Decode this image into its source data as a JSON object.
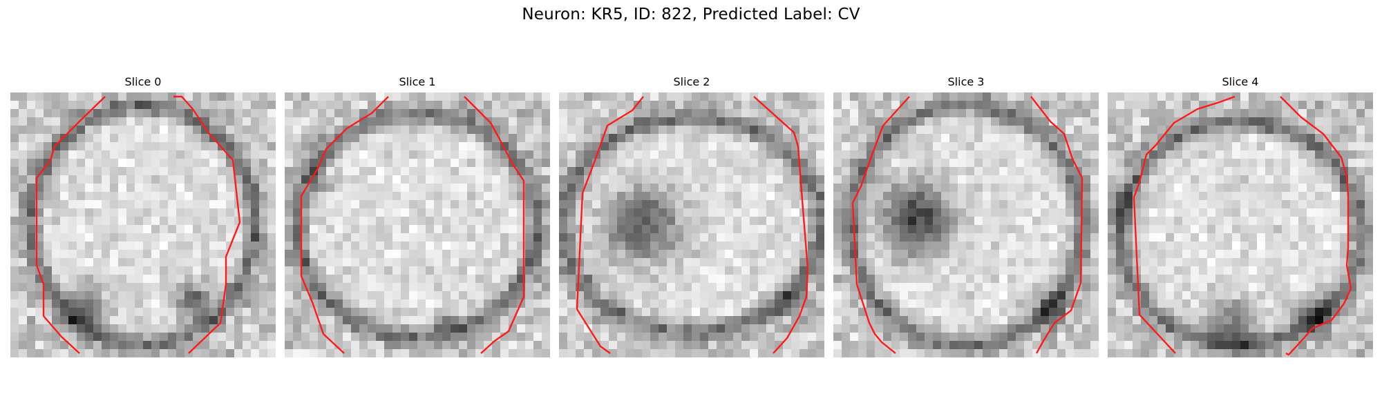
{
  "figure": {
    "title": "Neuron: KR5, ID: 822, Predicted Label: CV"
  },
  "slices": [
    {
      "label": "Slice 0"
    },
    {
      "label": "Slice 1"
    },
    {
      "label": "Slice 2"
    },
    {
      "label": "Slice 3"
    },
    {
      "label": "Slice 4"
    }
  ],
  "colors": {
    "contour": "#ff1a1a",
    "background": "#ffffff"
  }
}
